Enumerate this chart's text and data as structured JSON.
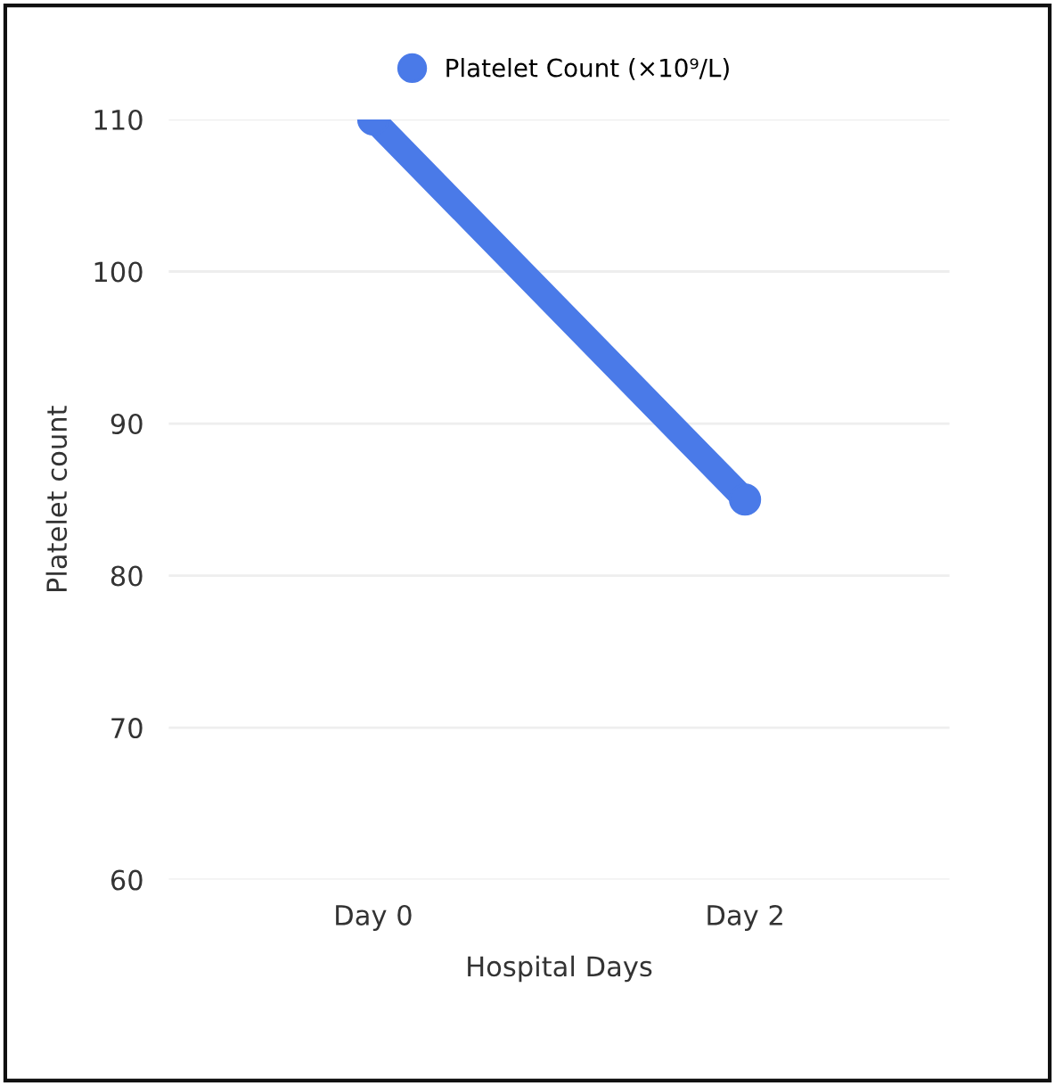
{
  "chart_data": {
    "type": "line",
    "xlabel": "Hospital Days",
    "ylabel": "Platelet count",
    "categories": [
      "Day 0",
      "Day 2"
    ],
    "series": [
      {
        "name": "Platelet Count (×10⁹/L)",
        "color": "#4a7ae8",
        "values": [
          110,
          85
        ]
      }
    ],
    "ylim": [
      60,
      110
    ],
    "yticks": [
      60,
      70,
      80,
      90,
      100,
      110
    ],
    "grid": "y",
    "legend": "top",
    "marker": "circle",
    "line_style": "solid"
  }
}
